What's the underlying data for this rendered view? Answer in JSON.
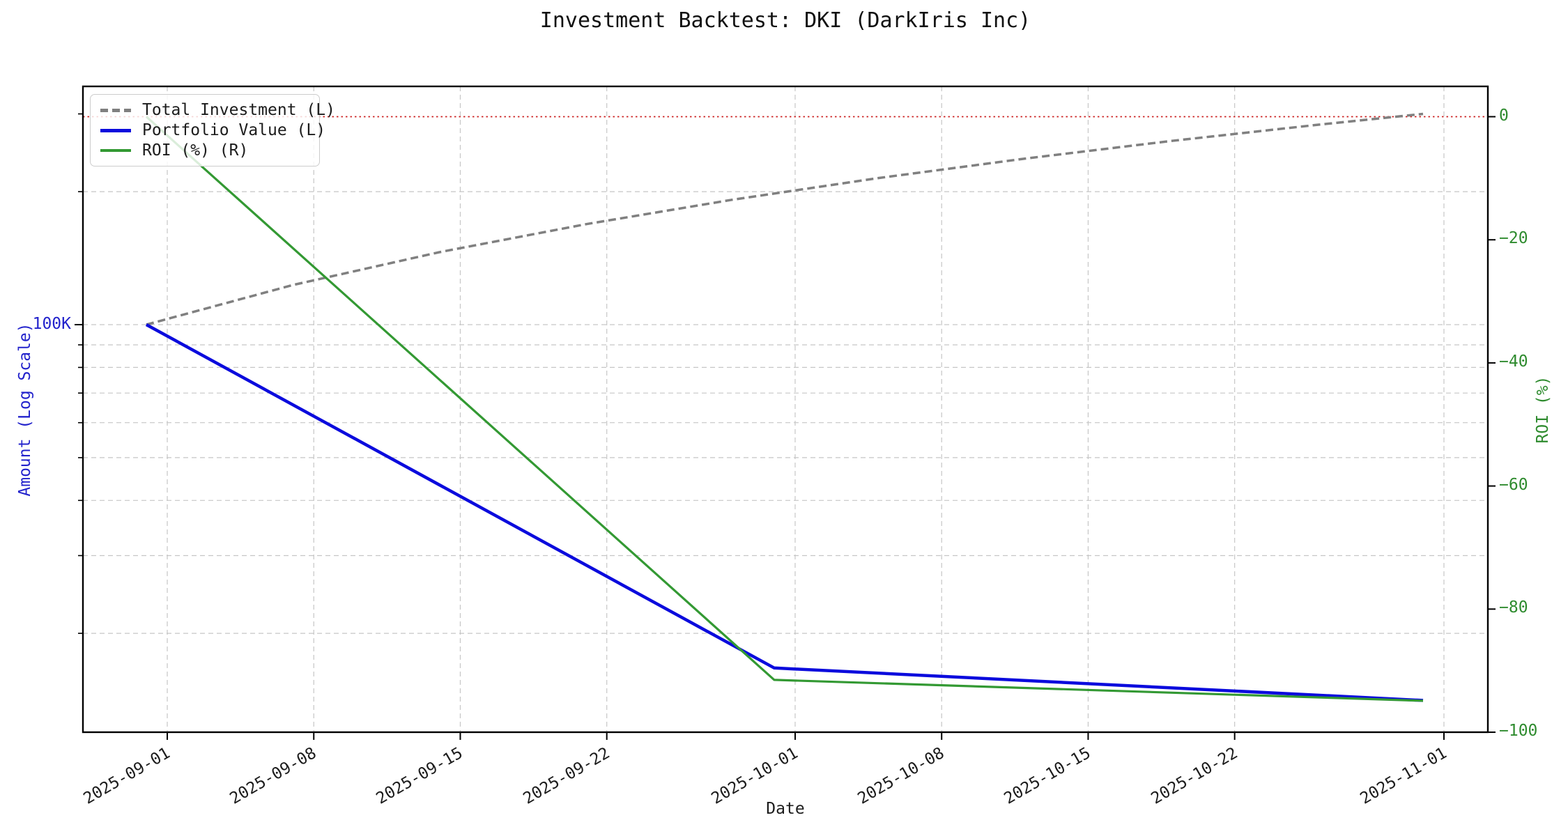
{
  "chart_data": {
    "type": "line",
    "title": "Investment Backtest: DKI (DarkIris Inc)",
    "xlabel": "Date",
    "ylabel_left": "Amount (Log Scale)",
    "ylabel_right": "ROI (%)",
    "grid": true,
    "legend_position": "upper-left",
    "x_tick_labels": [
      "2025-09-01",
      "2025-09-08",
      "2025-09-15",
      "2025-09-22",
      "2025-10-01",
      "2025-10-08",
      "2025-10-15",
      "2025-10-22",
      "2025-11-01"
    ],
    "left_axis": {
      "scale": "log",
      "color": "#2323cc",
      "major_tick": {
        "label": "100K",
        "value": 100000
      },
      "minor_tick_values": [
        300000,
        200000,
        90000,
        80000,
        70000,
        60000,
        50000,
        40000,
        30000,
        20000
      ],
      "grid_values": [
        200000,
        100000,
        90000,
        80000,
        70000,
        60000,
        50000,
        40000,
        30000,
        20000
      ]
    },
    "right_axis": {
      "scale": "linear",
      "color": "#2e8b2e",
      "tick_labels": [
        "0",
        "−20",
        "−40",
        "−60",
        "−80",
        "−100"
      ],
      "tick_values": [
        0,
        -20,
        -40,
        -60,
        -80,
        -100
      ]
    },
    "zero_line": {
      "axis": "right",
      "value": 0,
      "color": "#cc2222",
      "style": "dotted"
    },
    "series": [
      {
        "name": "Total Investment (L)",
        "axis": "left",
        "color": "#808080",
        "style": "dashed",
        "points": [
          [
            "2025-08-31",
            100000
          ],
          [
            "2025-09-07",
            122951
          ],
          [
            "2025-09-14",
            145902
          ],
          [
            "2025-09-21",
            168852
          ],
          [
            "2025-09-28",
            191803
          ],
          [
            "2025-10-05",
            214754
          ],
          [
            "2025-10-12",
            237705
          ],
          [
            "2025-10-19",
            260656
          ],
          [
            "2025-10-26",
            283607
          ],
          [
            "2025-10-31",
            300000
          ]
        ]
      },
      {
        "name": "Portfolio Value (L)",
        "axis": "left",
        "color": "#0b0bdd",
        "style": "solid",
        "points": [
          [
            "2025-08-31",
            100000
          ],
          [
            "2025-09-30",
            16700
          ],
          [
            "2025-10-31",
            14100
          ]
        ]
      },
      {
        "name": "ROI (%) (R)",
        "axis": "right",
        "color": "#339933",
        "style": "solid",
        "points": [
          [
            "2025-08-31",
            0
          ],
          [
            "2025-09-30",
            -91.5
          ],
          [
            "2025-10-31",
            -94.9
          ]
        ]
      }
    ]
  }
}
